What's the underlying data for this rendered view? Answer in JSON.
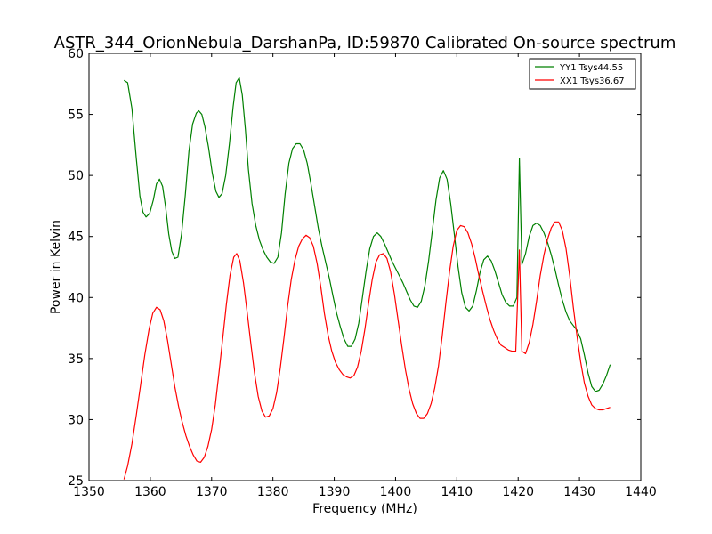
{
  "chart_data": {
    "type": "line",
    "title": "ASTR_344_OrionNebula_DarshanPa, ID:59870 Calibrated On-source spectrum",
    "xlabel": "Frequency (MHz)",
    "ylabel": "Power in Kelvin",
    "xlim": [
      1350,
      1440
    ],
    "ylim": [
      25,
      60
    ],
    "xticks": [
      1350,
      1360,
      1370,
      1380,
      1390,
      1400,
      1410,
      1420,
      1430,
      1440
    ],
    "yticks": [
      25,
      30,
      35,
      40,
      45,
      50,
      55,
      60
    ],
    "grid": false,
    "legend_position": "top-right",
    "series": [
      {
        "name": "YY1 Tsys44.55",
        "color": "#008000",
        "points": [
          [
            1355.7,
            57.8
          ],
          [
            1356.3,
            57.6
          ],
          [
            1357.0,
            55.5
          ],
          [
            1357.7,
            51.5
          ],
          [
            1358.3,
            48.3
          ],
          [
            1358.8,
            47.0
          ],
          [
            1359.3,
            46.6
          ],
          [
            1359.9,
            46.9
          ],
          [
            1360.5,
            48.0
          ],
          [
            1361.0,
            49.3
          ],
          [
            1361.5,
            49.7
          ],
          [
            1362.0,
            49.1
          ],
          [
            1362.5,
            47.4
          ],
          [
            1363.0,
            45.2
          ],
          [
            1363.5,
            43.8
          ],
          [
            1364.0,
            43.2
          ],
          [
            1364.5,
            43.3
          ],
          [
            1365.1,
            45.2
          ],
          [
            1365.7,
            48.4
          ],
          [
            1366.3,
            52.0
          ],
          [
            1366.9,
            54.2
          ],
          [
            1367.5,
            55.1
          ],
          [
            1367.9,
            55.3
          ],
          [
            1368.4,
            55.0
          ],
          [
            1368.9,
            54.0
          ],
          [
            1369.5,
            52.3
          ],
          [
            1370.1,
            50.2
          ],
          [
            1370.7,
            48.7
          ],
          [
            1371.2,
            48.2
          ],
          [
            1371.7,
            48.5
          ],
          [
            1372.3,
            50.0
          ],
          [
            1372.9,
            52.6
          ],
          [
            1373.5,
            55.6
          ],
          [
            1374.0,
            57.6
          ],
          [
            1374.5,
            58.0
          ],
          [
            1375.0,
            56.6
          ],
          [
            1375.5,
            53.8
          ],
          [
            1376.0,
            50.5
          ],
          [
            1376.6,
            47.7
          ],
          [
            1377.2,
            45.9
          ],
          [
            1377.8,
            44.7
          ],
          [
            1378.4,
            43.9
          ],
          [
            1379.0,
            43.3
          ],
          [
            1379.6,
            42.9
          ],
          [
            1380.2,
            42.8
          ],
          [
            1380.8,
            43.3
          ],
          [
            1381.4,
            45.3
          ],
          [
            1382.0,
            48.5
          ],
          [
            1382.6,
            51.0
          ],
          [
            1383.2,
            52.2
          ],
          [
            1383.8,
            52.6
          ],
          [
            1384.4,
            52.6
          ],
          [
            1385.0,
            52.1
          ],
          [
            1385.6,
            51.0
          ],
          [
            1386.2,
            49.3
          ],
          [
            1386.8,
            47.5
          ],
          [
            1387.4,
            45.7
          ],
          [
            1388.0,
            44.2
          ],
          [
            1388.6,
            42.9
          ],
          [
            1389.2,
            41.6
          ],
          [
            1389.8,
            40.1
          ],
          [
            1390.4,
            38.7
          ],
          [
            1391.0,
            37.6
          ],
          [
            1391.6,
            36.6
          ],
          [
            1392.2,
            36.0
          ],
          [
            1392.8,
            36.0
          ],
          [
            1393.4,
            36.6
          ],
          [
            1394.0,
            37.9
          ],
          [
            1394.6,
            40.0
          ],
          [
            1395.2,
            42.2
          ],
          [
            1395.8,
            44.0
          ],
          [
            1396.4,
            45.0
          ],
          [
            1397.0,
            45.3
          ],
          [
            1397.6,
            45.0
          ],
          [
            1398.2,
            44.4
          ],
          [
            1398.8,
            43.7
          ],
          [
            1399.4,
            43.0
          ],
          [
            1400.0,
            42.4
          ],
          [
            1400.6,
            41.8
          ],
          [
            1401.2,
            41.2
          ],
          [
            1401.8,
            40.5
          ],
          [
            1402.4,
            39.8
          ],
          [
            1403.0,
            39.3
          ],
          [
            1403.6,
            39.2
          ],
          [
            1404.2,
            39.7
          ],
          [
            1404.8,
            41.0
          ],
          [
            1405.4,
            43.0
          ],
          [
            1406.0,
            45.5
          ],
          [
            1406.6,
            48.0
          ],
          [
            1407.2,
            49.8
          ],
          [
            1407.8,
            50.4
          ],
          [
            1408.4,
            49.7
          ],
          [
            1409.0,
            47.7
          ],
          [
            1409.6,
            45.1
          ],
          [
            1410.2,
            42.5
          ],
          [
            1410.8,
            40.4
          ],
          [
            1411.4,
            39.2
          ],
          [
            1412.0,
            38.9
          ],
          [
            1412.6,
            39.3
          ],
          [
            1413.2,
            40.6
          ],
          [
            1413.8,
            42.1
          ],
          [
            1414.4,
            43.1
          ],
          [
            1415.0,
            43.4
          ],
          [
            1415.6,
            43.0
          ],
          [
            1416.2,
            42.2
          ],
          [
            1416.8,
            41.2
          ],
          [
            1417.4,
            40.2
          ],
          [
            1418.0,
            39.6
          ],
          [
            1418.6,
            39.3
          ],
          [
            1419.2,
            39.3
          ],
          [
            1419.8,
            40.0
          ],
          [
            1420.2,
            51.4
          ],
          [
            1420.6,
            42.7
          ],
          [
            1421.2,
            43.6
          ],
          [
            1421.8,
            45.0
          ],
          [
            1422.4,
            45.9
          ],
          [
            1423.0,
            46.1
          ],
          [
            1423.6,
            45.9
          ],
          [
            1424.2,
            45.3
          ],
          [
            1424.8,
            44.5
          ],
          [
            1425.4,
            43.5
          ],
          [
            1426.0,
            42.3
          ],
          [
            1426.6,
            41.0
          ],
          [
            1427.2,
            39.8
          ],
          [
            1427.8,
            38.8
          ],
          [
            1428.4,
            38.1
          ],
          [
            1429.0,
            37.7
          ],
          [
            1429.6,
            37.3
          ],
          [
            1430.2,
            36.6
          ],
          [
            1430.8,
            35.3
          ],
          [
            1431.4,
            33.8
          ],
          [
            1432.0,
            32.7
          ],
          [
            1432.6,
            32.3
          ],
          [
            1433.2,
            32.4
          ],
          [
            1433.8,
            32.9
          ],
          [
            1434.4,
            33.6
          ],
          [
            1435.0,
            34.5
          ]
        ]
      },
      {
        "name": "XX1 Tsys36.67",
        "color": "#ff0000",
        "points": [
          [
            1355.7,
            25.1
          ],
          [
            1356.3,
            26.2
          ],
          [
            1357.0,
            28.0
          ],
          [
            1357.7,
            30.3
          ],
          [
            1358.4,
            32.8
          ],
          [
            1359.1,
            35.3
          ],
          [
            1359.8,
            37.4
          ],
          [
            1360.4,
            38.7
          ],
          [
            1361.0,
            39.2
          ],
          [
            1361.6,
            39.0
          ],
          [
            1362.2,
            38.1
          ],
          [
            1362.8,
            36.5
          ],
          [
            1363.4,
            34.6
          ],
          [
            1364.0,
            32.7
          ],
          [
            1364.6,
            31.1
          ],
          [
            1365.2,
            29.8
          ],
          [
            1365.8,
            28.7
          ],
          [
            1366.4,
            27.8
          ],
          [
            1367.0,
            27.1
          ],
          [
            1367.6,
            26.6
          ],
          [
            1368.2,
            26.5
          ],
          [
            1368.8,
            26.9
          ],
          [
            1369.4,
            27.8
          ],
          [
            1370.0,
            29.2
          ],
          [
            1370.6,
            31.2
          ],
          [
            1371.2,
            33.8
          ],
          [
            1371.8,
            36.6
          ],
          [
            1372.4,
            39.4
          ],
          [
            1373.0,
            41.8
          ],
          [
            1373.6,
            43.3
          ],
          [
            1374.1,
            43.6
          ],
          [
            1374.6,
            43.0
          ],
          [
            1375.2,
            41.2
          ],
          [
            1375.8,
            38.8
          ],
          [
            1376.4,
            36.2
          ],
          [
            1377.0,
            33.8
          ],
          [
            1377.6,
            31.9
          ],
          [
            1378.2,
            30.7
          ],
          [
            1378.8,
            30.2
          ],
          [
            1379.4,
            30.3
          ],
          [
            1380.0,
            30.9
          ],
          [
            1380.6,
            32.2
          ],
          [
            1381.2,
            34.2
          ],
          [
            1381.8,
            36.7
          ],
          [
            1382.4,
            39.3
          ],
          [
            1383.0,
            41.5
          ],
          [
            1383.6,
            43.1
          ],
          [
            1384.2,
            44.2
          ],
          [
            1384.8,
            44.8
          ],
          [
            1385.4,
            45.1
          ],
          [
            1386.0,
            44.9
          ],
          [
            1386.6,
            44.2
          ],
          [
            1387.2,
            42.8
          ],
          [
            1387.8,
            40.9
          ],
          [
            1388.4,
            38.7
          ],
          [
            1389.0,
            36.9
          ],
          [
            1389.6,
            35.6
          ],
          [
            1390.2,
            34.7
          ],
          [
            1390.8,
            34.1
          ],
          [
            1391.4,
            33.7
          ],
          [
            1392.0,
            33.5
          ],
          [
            1392.6,
            33.4
          ],
          [
            1393.2,
            33.6
          ],
          [
            1393.8,
            34.3
          ],
          [
            1394.4,
            35.6
          ],
          [
            1395.0,
            37.4
          ],
          [
            1395.6,
            39.5
          ],
          [
            1396.2,
            41.5
          ],
          [
            1396.8,
            42.9
          ],
          [
            1397.4,
            43.5
          ],
          [
            1398.0,
            43.6
          ],
          [
            1398.6,
            43.2
          ],
          [
            1399.2,
            42.1
          ],
          [
            1399.8,
            40.3
          ],
          [
            1400.4,
            38.2
          ],
          [
            1401.0,
            36.1
          ],
          [
            1401.6,
            34.1
          ],
          [
            1402.2,
            32.5
          ],
          [
            1402.8,
            31.3
          ],
          [
            1403.4,
            30.5
          ],
          [
            1404.0,
            30.1
          ],
          [
            1404.6,
            30.1
          ],
          [
            1405.2,
            30.5
          ],
          [
            1405.8,
            31.3
          ],
          [
            1406.4,
            32.6
          ],
          [
            1407.0,
            34.4
          ],
          [
            1407.6,
            36.8
          ],
          [
            1408.2,
            39.5
          ],
          [
            1408.8,
            42.1
          ],
          [
            1409.4,
            44.2
          ],
          [
            1410.0,
            45.5
          ],
          [
            1410.6,
            45.9
          ],
          [
            1411.2,
            45.8
          ],
          [
            1411.8,
            45.3
          ],
          [
            1412.4,
            44.4
          ],
          [
            1413.0,
            43.2
          ],
          [
            1413.6,
            41.8
          ],
          [
            1414.2,
            40.5
          ],
          [
            1414.8,
            39.3
          ],
          [
            1415.4,
            38.2
          ],
          [
            1416.0,
            37.3
          ],
          [
            1416.6,
            36.6
          ],
          [
            1417.2,
            36.1
          ],
          [
            1417.8,
            35.9
          ],
          [
            1418.4,
            35.7
          ],
          [
            1419.0,
            35.6
          ],
          [
            1419.6,
            35.6
          ],
          [
            1420.2,
            43.9
          ],
          [
            1420.6,
            35.6
          ],
          [
            1421.2,
            35.4
          ],
          [
            1421.8,
            36.3
          ],
          [
            1422.4,
            37.8
          ],
          [
            1423.0,
            39.7
          ],
          [
            1423.6,
            41.8
          ],
          [
            1424.2,
            43.5
          ],
          [
            1424.8,
            44.8
          ],
          [
            1425.4,
            45.7
          ],
          [
            1426.0,
            46.2
          ],
          [
            1426.6,
            46.2
          ],
          [
            1427.2,
            45.5
          ],
          [
            1427.8,
            44.0
          ],
          [
            1428.4,
            41.8
          ],
          [
            1429.0,
            39.2
          ],
          [
            1429.6,
            36.8
          ],
          [
            1430.2,
            34.7
          ],
          [
            1430.8,
            33.0
          ],
          [
            1431.4,
            31.9
          ],
          [
            1432.0,
            31.2
          ],
          [
            1432.6,
            30.9
          ],
          [
            1433.2,
            30.8
          ],
          [
            1433.8,
            30.8
          ],
          [
            1434.4,
            30.9
          ],
          [
            1435.0,
            31.0
          ]
        ]
      }
    ]
  }
}
